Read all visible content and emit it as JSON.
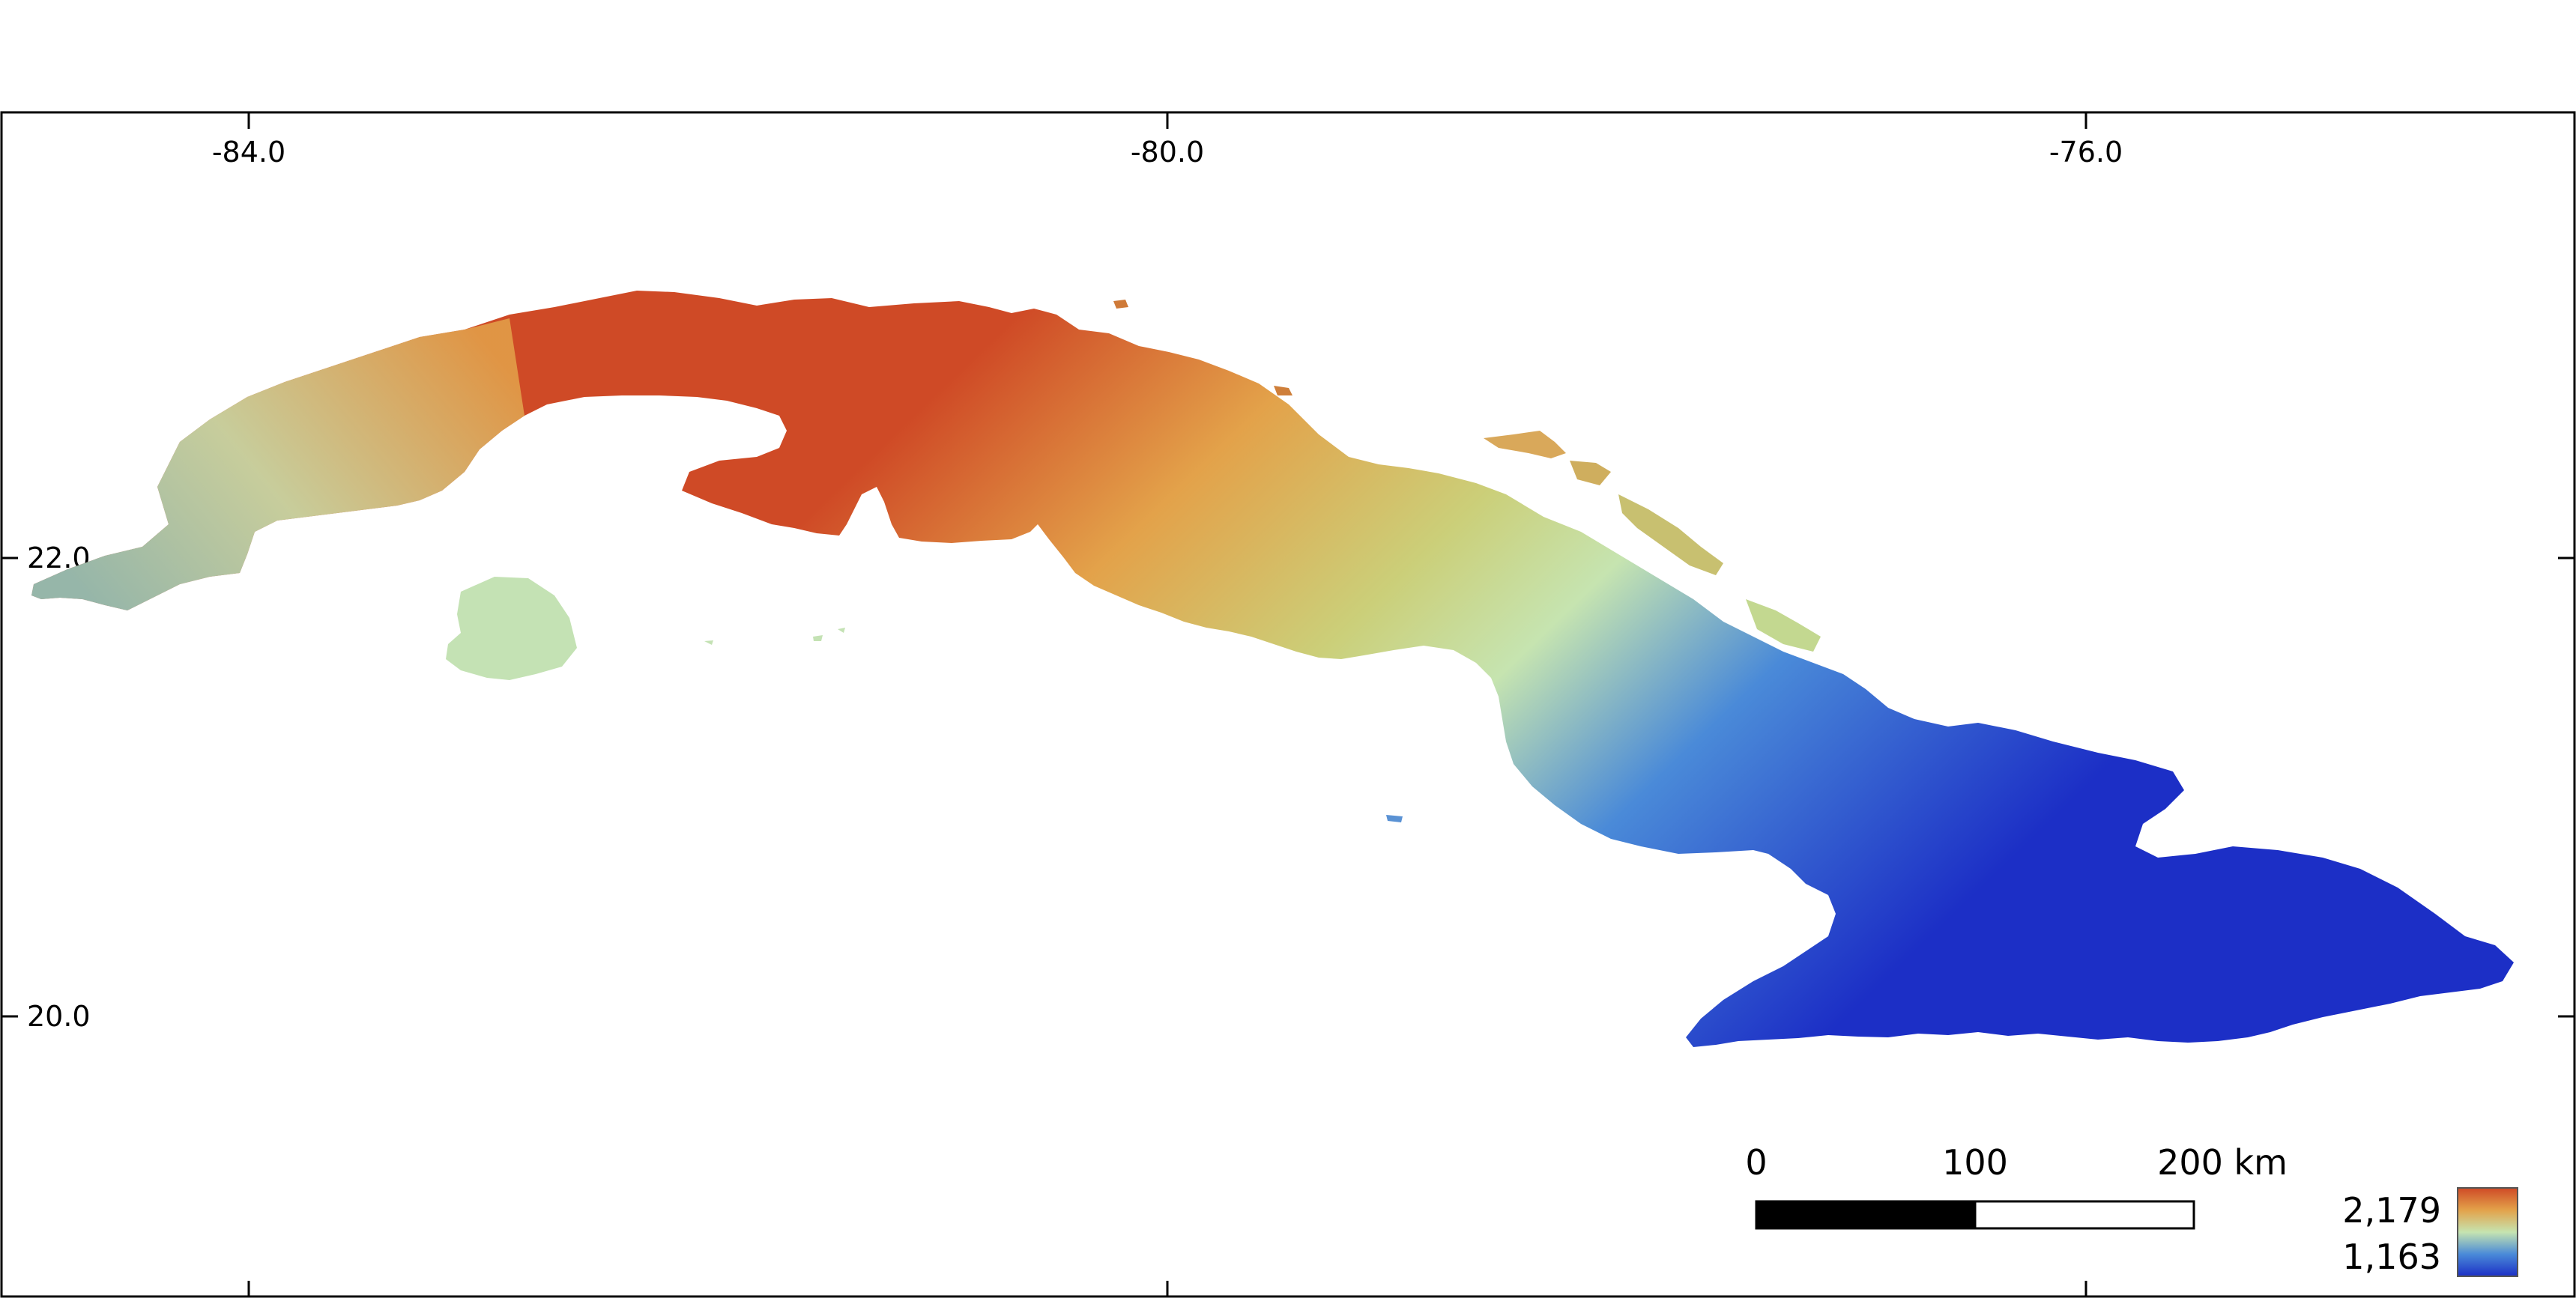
{
  "map": {
    "region": "Cuba",
    "longitude_ticks": [
      "-84.0",
      "-80.0",
      "-76.0"
    ],
    "latitude_ticks": [
      "22.0",
      "20.0"
    ]
  },
  "scale_bar": {
    "labels": [
      "0",
      "100",
      "200 km"
    ]
  },
  "legend": {
    "max_label": "2,179",
    "min_label": "1,163",
    "colors": {
      "high": "#cf4a26",
      "upper": "#e3a24a",
      "mid": "#c6e4b0",
      "lower": "#4a8ad8",
      "low": "#1c2fc6"
    }
  }
}
